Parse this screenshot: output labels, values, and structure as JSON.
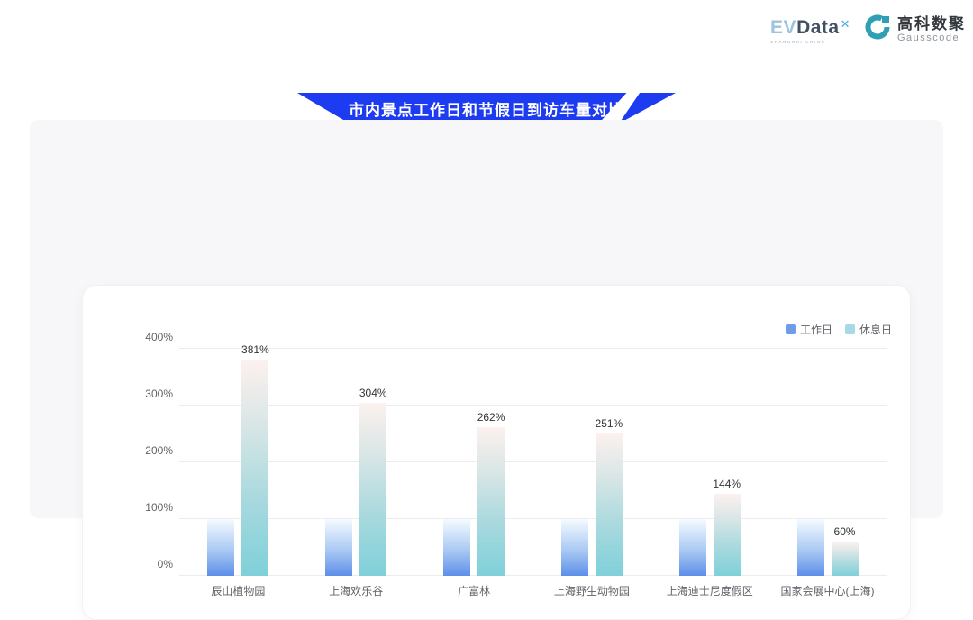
{
  "header": {
    "logo_evdata": {
      "text_ev": "EV",
      "text_data": "Data",
      "sup": "✕",
      "subtext": "SHANGHAI CHINA"
    },
    "logo_gausscode": {
      "cn": "高科数聚",
      "en": "Gausscode",
      "icon_color": "#2fa0b3"
    }
  },
  "banner": {
    "title": "市内景点工作日和节假日到访车量对比",
    "color": "#1d3bf1"
  },
  "legend": {
    "items": [
      {
        "label": "工作日",
        "color": "#6f9ce9"
      },
      {
        "label": "休息日",
        "color": "#a6dbe6"
      }
    ]
  },
  "chart_data": {
    "type": "bar",
    "title": "市内景点工作日和节假日到访车量对比",
    "categories": [
      "辰山植物园",
      "上海欢乐谷",
      "广富林",
      "上海野生动物园",
      "上海迪士尼度假区",
      "国家会展中心(上海)"
    ],
    "series": [
      {
        "name": "工作日",
        "values": [
          100,
          100,
          100,
          100,
          100,
          100
        ],
        "gradient": [
          "#f5fbff",
          "#5d8fe9"
        ],
        "data_labels": [
          "",
          "",
          "",
          "",
          "",
          ""
        ]
      },
      {
        "name": "休息日",
        "values": [
          381,
          304,
          262,
          251,
          144,
          60
        ],
        "gradient": [
          "#fcf1ee",
          "#7fd0da"
        ],
        "data_labels": [
          "381%",
          "304%",
          "262%",
          "251%",
          "144%",
          "60%"
        ]
      }
    ],
    "xlabel": "",
    "ylabel": "",
    "yticks": [
      "0%",
      "100%",
      "200%",
      "300%",
      "400%"
    ],
    "ylim": [
      0,
      400
    ],
    "grid": true,
    "legend_position": "top-right"
  }
}
